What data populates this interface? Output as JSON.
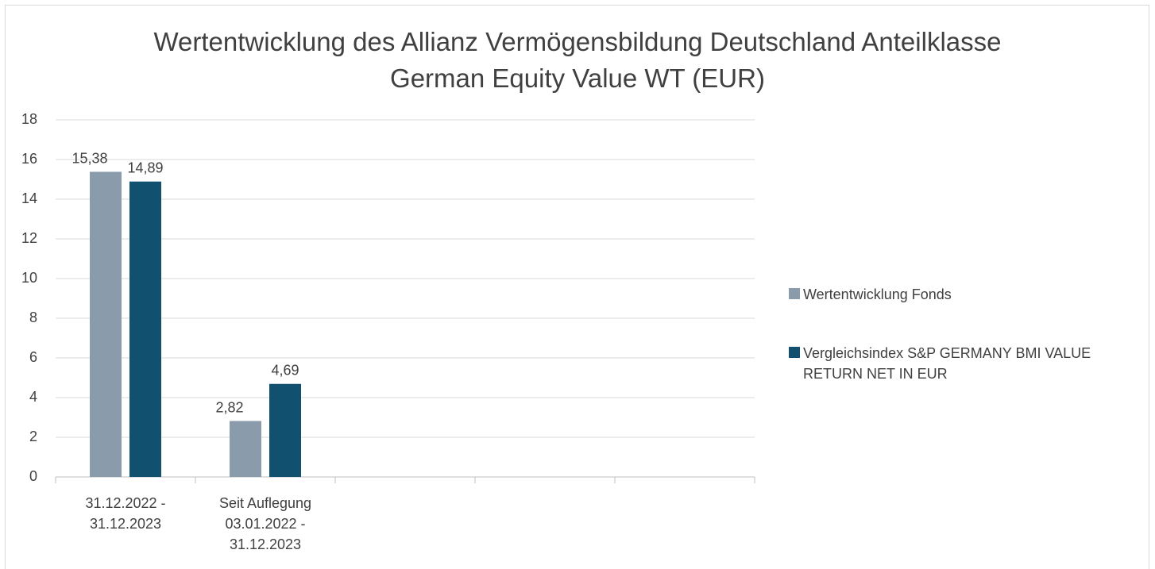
{
  "chart_data": {
    "type": "bar",
    "title": "Wertentwicklung des Allianz Vermögensbildung Deutschland Anteilklasse\nGerman Equity Value WT (EUR)",
    "categories": [
      "31.12.2022 -\n31.12.2023",
      "Seit Auflegung\n03.01.2022 -\n31.12.2023",
      null,
      null,
      null
    ],
    "series": [
      {
        "name": "Wertentwicklung Fonds",
        "color": "#8a9bab",
        "values": [
          15.38,
          2.82,
          null,
          null,
          null
        ],
        "value_labels": [
          "15,38",
          "2,82",
          null,
          null,
          null
        ]
      },
      {
        "name": "Vergleichsindex S&P GERMANY BMI VALUE RETURN NET IN EUR",
        "color": "#12506f",
        "values": [
          14.89,
          4.69,
          null,
          null,
          null
        ],
        "value_labels": [
          "14,89",
          "4,69",
          null,
          null,
          null
        ]
      }
    ],
    "ylim": [
      0,
      18
    ],
    "yticks": [
      0,
      2,
      4,
      6,
      8,
      10,
      12,
      14,
      16,
      18
    ],
    "grid": true,
    "legend": "right"
  }
}
